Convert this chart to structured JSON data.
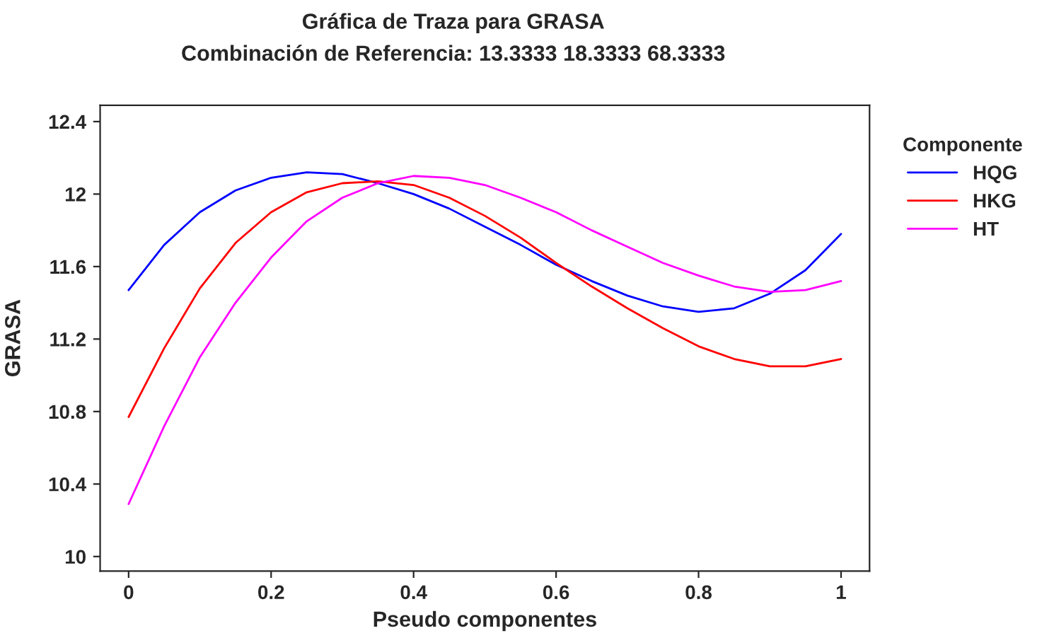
{
  "chart_data": {
    "type": "line",
    "title": "Gráfica de Traza para GRASA",
    "subtitle": "Combinación de Referencia: 13.3333 18.3333 68.3333",
    "xlabel": "Pseudo componentes",
    "ylabel": "GRASA",
    "legend_title": "Componente",
    "legend": "right",
    "grid": false,
    "marker": "none",
    "line_style": "solid",
    "x": [
      0,
      0.05,
      0.1,
      0.15,
      0.2,
      0.25,
      0.3,
      0.35,
      0.4,
      0.45,
      0.5,
      0.55,
      0.6,
      0.65,
      0.7,
      0.75,
      0.8,
      0.85,
      0.9,
      0.95,
      1
    ],
    "series": [
      {
        "name": "HQG",
        "color": "#0000ff",
        "values": [
          11.47,
          11.72,
          11.9,
          12.02,
          12.09,
          12.12,
          12.11,
          12.06,
          12.0,
          11.92,
          11.82,
          11.72,
          11.61,
          11.52,
          11.44,
          11.38,
          11.35,
          11.37,
          11.45,
          11.58,
          11.78
        ]
      },
      {
        "name": "HKG",
        "color": "#ff0000",
        "values": [
          10.77,
          11.15,
          11.48,
          11.73,
          11.9,
          12.01,
          12.06,
          12.07,
          12.05,
          11.98,
          11.88,
          11.76,
          11.62,
          11.49,
          11.37,
          11.26,
          11.16,
          11.09,
          11.05,
          11.05,
          11.09
        ]
      },
      {
        "name": "HT",
        "color": "#ff00ff",
        "values": [
          10.29,
          10.72,
          11.1,
          11.4,
          11.65,
          11.85,
          11.98,
          12.06,
          12.1,
          12.09,
          12.05,
          11.98,
          11.9,
          11.8,
          11.71,
          11.62,
          11.55,
          11.49,
          11.46,
          11.47,
          11.52
        ]
      }
    ],
    "xlim": [
      -0.04,
      1.04
    ],
    "ylim": [
      9.92,
      12.49
    ],
    "xticks": [
      0,
      0.2,
      0.4,
      0.6,
      0.8,
      1
    ],
    "yticks": [
      10,
      10.4,
      10.8,
      11.2,
      11.6,
      12,
      12.4
    ]
  }
}
